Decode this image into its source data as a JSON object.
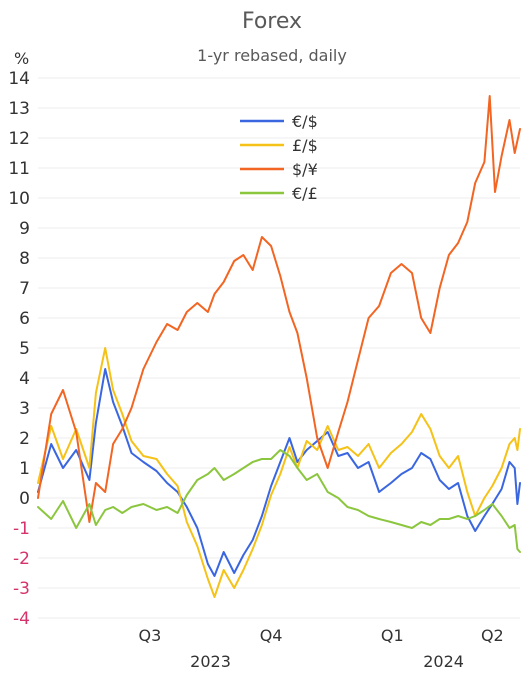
{
  "chart_data": {
    "type": "line",
    "title": "Forex",
    "subtitle": "1-yr rebased, daily",
    "ylabel": "%",
    "ylim": [
      -4,
      14
    ],
    "yticks": [
      -4,
      -3,
      -2,
      -1,
      0,
      1,
      2,
      3,
      4,
      5,
      6,
      7,
      8,
      9,
      10,
      11,
      12,
      13,
      14
    ],
    "xlim": [
      "2023-05-22",
      "2024-05-22"
    ],
    "quarter_ticks": [
      {
        "label": "Q3",
        "date": "2023-08-15"
      },
      {
        "label": "Q4",
        "date": "2023-11-15"
      },
      {
        "label": "Q1",
        "date": "2024-02-15"
      },
      {
        "label": "Q2",
        "date": "2024-05-01"
      }
    ],
    "year_labels": [
      {
        "label": "2023",
        "date": "2023-09-30"
      },
      {
        "label": "2024",
        "date": "2024-03-25"
      }
    ],
    "grid": true,
    "legend_position": "top-center",
    "series": [
      {
        "name": "€/$",
        "color": "#3a66e0",
        "points": [
          [
            "2023-05-22",
            0.2
          ],
          [
            "2023-06-01",
            1.8
          ],
          [
            "2023-06-10",
            1.0
          ],
          [
            "2023-06-20",
            1.6
          ],
          [
            "2023-06-30",
            0.6
          ],
          [
            "2023-07-05",
            2.5
          ],
          [
            "2023-07-12",
            4.3
          ],
          [
            "2023-07-18",
            3.2
          ],
          [
            "2023-07-25",
            2.4
          ],
          [
            "2023-08-01",
            1.5
          ],
          [
            "2023-08-10",
            1.2
          ],
          [
            "2023-08-20",
            0.9
          ],
          [
            "2023-08-28",
            0.5
          ],
          [
            "2023-09-05",
            0.2
          ],
          [
            "2023-09-12",
            -0.3
          ],
          [
            "2023-09-20",
            -1.0
          ],
          [
            "2023-09-28",
            -2.2
          ],
          [
            "2023-10-03",
            -2.6
          ],
          [
            "2023-10-10",
            -1.8
          ],
          [
            "2023-10-18",
            -2.5
          ],
          [
            "2023-10-25",
            -1.9
          ],
          [
            "2023-11-01",
            -1.4
          ],
          [
            "2023-11-08",
            -0.6
          ],
          [
            "2023-11-15",
            0.4
          ],
          [
            "2023-11-22",
            1.2
          ],
          [
            "2023-11-29",
            2.0
          ],
          [
            "2023-12-05",
            1.2
          ],
          [
            "2023-12-12",
            1.6
          ],
          [
            "2023-12-20",
            1.9
          ],
          [
            "2023-12-28",
            2.2
          ],
          [
            "2024-01-05",
            1.4
          ],
          [
            "2024-01-12",
            1.5
          ],
          [
            "2024-01-20",
            1.0
          ],
          [
            "2024-01-28",
            1.2
          ],
          [
            "2024-02-05",
            0.2
          ],
          [
            "2024-02-14",
            0.5
          ],
          [
            "2024-02-22",
            0.8
          ],
          [
            "2024-03-01",
            1.0
          ],
          [
            "2024-03-08",
            1.5
          ],
          [
            "2024-03-15",
            1.3
          ],
          [
            "2024-03-22",
            0.6
          ],
          [
            "2024-03-29",
            0.3
          ],
          [
            "2024-04-05",
            0.5
          ],
          [
            "2024-04-12",
            -0.6
          ],
          [
            "2024-04-18",
            -1.1
          ],
          [
            "2024-04-25",
            -0.6
          ],
          [
            "2024-05-01",
            -0.2
          ],
          [
            "2024-05-08",
            0.3
          ],
          [
            "2024-05-14",
            1.2
          ],
          [
            "2024-05-18",
            1.0
          ],
          [
            "2024-05-20",
            -0.2
          ],
          [
            "2024-05-22",
            0.5
          ]
        ]
      },
      {
        "name": "£/$",
        "color": "#f5c218",
        "points": [
          [
            "2023-05-22",
            0.5
          ],
          [
            "2023-06-01",
            2.4
          ],
          [
            "2023-06-10",
            1.3
          ],
          [
            "2023-06-20",
            2.3
          ],
          [
            "2023-06-30",
            1.0
          ],
          [
            "2023-07-05",
            3.5
          ],
          [
            "2023-07-12",
            5.0
          ],
          [
            "2023-07-18",
            3.6
          ],
          [
            "2023-07-25",
            2.8
          ],
          [
            "2023-08-01",
            1.9
          ],
          [
            "2023-08-10",
            1.4
          ],
          [
            "2023-08-20",
            1.3
          ],
          [
            "2023-08-28",
            0.8
          ],
          [
            "2023-09-05",
            0.4
          ],
          [
            "2023-09-12",
            -0.8
          ],
          [
            "2023-09-20",
            -1.6
          ],
          [
            "2023-09-28",
            -2.7
          ],
          [
            "2023-10-03",
            -3.3
          ],
          [
            "2023-10-10",
            -2.4
          ],
          [
            "2023-10-18",
            -3.0
          ],
          [
            "2023-10-25",
            -2.4
          ],
          [
            "2023-11-01",
            -1.7
          ],
          [
            "2023-11-08",
            -0.9
          ],
          [
            "2023-11-15",
            0.1
          ],
          [
            "2023-11-22",
            0.8
          ],
          [
            "2023-11-29",
            1.7
          ],
          [
            "2023-12-05",
            1.0
          ],
          [
            "2023-12-12",
            1.9
          ],
          [
            "2023-12-20",
            1.6
          ],
          [
            "2023-12-28",
            2.4
          ],
          [
            "2024-01-05",
            1.6
          ],
          [
            "2024-01-12",
            1.7
          ],
          [
            "2024-01-20",
            1.4
          ],
          [
            "2024-01-28",
            1.8
          ],
          [
            "2024-02-05",
            1.0
          ],
          [
            "2024-02-14",
            1.5
          ],
          [
            "2024-02-22",
            1.8
          ],
          [
            "2024-03-01",
            2.2
          ],
          [
            "2024-03-08",
            2.8
          ],
          [
            "2024-03-15",
            2.3
          ],
          [
            "2024-03-22",
            1.4
          ],
          [
            "2024-03-29",
            1.0
          ],
          [
            "2024-04-05",
            1.4
          ],
          [
            "2024-04-12",
            0.2
          ],
          [
            "2024-04-18",
            -0.6
          ],
          [
            "2024-04-25",
            0.0
          ],
          [
            "2024-05-01",
            0.4
          ],
          [
            "2024-05-08",
            1.0
          ],
          [
            "2024-05-14",
            1.8
          ],
          [
            "2024-05-18",
            2.0
          ],
          [
            "2024-05-20",
            1.6
          ],
          [
            "2024-05-22",
            2.3
          ]
        ]
      },
      {
        "name": "$/¥",
        "color": "#f26522",
        "points": [
          [
            "2023-05-22",
            0.0
          ],
          [
            "2023-06-01",
            2.8
          ],
          [
            "2023-06-10",
            3.6
          ],
          [
            "2023-06-20",
            2.2
          ],
          [
            "2023-06-30",
            -0.8
          ],
          [
            "2023-07-05",
            0.5
          ],
          [
            "2023-07-12",
            0.2
          ],
          [
            "2023-07-18",
            1.8
          ],
          [
            "2023-07-25",
            2.3
          ],
          [
            "2023-08-01",
            3.0
          ],
          [
            "2023-08-10",
            4.3
          ],
          [
            "2023-08-20",
            5.2
          ],
          [
            "2023-08-28",
            5.8
          ],
          [
            "2023-09-05",
            5.6
          ],
          [
            "2023-09-12",
            6.2
          ],
          [
            "2023-09-20",
            6.5
          ],
          [
            "2023-09-28",
            6.2
          ],
          [
            "2023-10-03",
            6.8
          ],
          [
            "2023-10-10",
            7.2
          ],
          [
            "2023-10-18",
            7.9
          ],
          [
            "2023-10-25",
            8.1
          ],
          [
            "2023-11-01",
            7.6
          ],
          [
            "2023-11-08",
            8.7
          ],
          [
            "2023-11-15",
            8.4
          ],
          [
            "2023-11-22",
            7.4
          ],
          [
            "2023-11-29",
            6.2
          ],
          [
            "2023-12-05",
            5.5
          ],
          [
            "2023-12-12",
            4.0
          ],
          [
            "2023-12-20",
            2.0
          ],
          [
            "2023-12-28",
            1.0
          ],
          [
            "2024-01-05",
            2.2
          ],
          [
            "2024-01-12",
            3.2
          ],
          [
            "2024-01-20",
            4.6
          ],
          [
            "2024-01-28",
            6.0
          ],
          [
            "2024-02-05",
            6.4
          ],
          [
            "2024-02-14",
            7.5
          ],
          [
            "2024-02-22",
            7.8
          ],
          [
            "2024-03-01",
            7.5
          ],
          [
            "2024-03-08",
            6.0
          ],
          [
            "2024-03-15",
            5.5
          ],
          [
            "2024-03-22",
            7.0
          ],
          [
            "2024-03-29",
            8.1
          ],
          [
            "2024-04-05",
            8.5
          ],
          [
            "2024-04-12",
            9.2
          ],
          [
            "2024-04-18",
            10.5
          ],
          [
            "2024-04-25",
            11.2
          ],
          [
            "2024-04-29",
            13.4
          ],
          [
            "2024-05-03",
            10.2
          ],
          [
            "2024-05-08",
            11.4
          ],
          [
            "2024-05-14",
            12.6
          ],
          [
            "2024-05-18",
            11.5
          ],
          [
            "2024-05-22",
            12.3
          ]
        ]
      },
      {
        "name": "€/£",
        "color": "#8cc63f",
        "points": [
          [
            "2023-05-22",
            -0.3
          ],
          [
            "2023-06-01",
            -0.7
          ],
          [
            "2023-06-10",
            -0.1
          ],
          [
            "2023-06-20",
            -1.0
          ],
          [
            "2023-06-30",
            -0.2
          ],
          [
            "2023-07-05",
            -0.9
          ],
          [
            "2023-07-12",
            -0.4
          ],
          [
            "2023-07-18",
            -0.3
          ],
          [
            "2023-07-25",
            -0.5
          ],
          [
            "2023-08-01",
            -0.3
          ],
          [
            "2023-08-10",
            -0.2
          ],
          [
            "2023-08-20",
            -0.4
          ],
          [
            "2023-08-28",
            -0.3
          ],
          [
            "2023-09-05",
            -0.5
          ],
          [
            "2023-09-12",
            0.1
          ],
          [
            "2023-09-20",
            0.6
          ],
          [
            "2023-09-28",
            0.8
          ],
          [
            "2023-10-03",
            1.0
          ],
          [
            "2023-10-10",
            0.6
          ],
          [
            "2023-10-18",
            0.8
          ],
          [
            "2023-10-25",
            1.0
          ],
          [
            "2023-11-01",
            1.2
          ],
          [
            "2023-11-08",
            1.3
          ],
          [
            "2023-11-15",
            1.3
          ],
          [
            "2023-11-22",
            1.6
          ],
          [
            "2023-11-29",
            1.4
          ],
          [
            "2023-12-05",
            1.0
          ],
          [
            "2023-12-12",
            0.6
          ],
          [
            "2023-12-20",
            0.8
          ],
          [
            "2023-12-28",
            0.2
          ],
          [
            "2024-01-05",
            0.0
          ],
          [
            "2024-01-12",
            -0.3
          ],
          [
            "2024-01-20",
            -0.4
          ],
          [
            "2024-01-28",
            -0.6
          ],
          [
            "2024-02-05",
            -0.7
          ],
          [
            "2024-02-14",
            -0.8
          ],
          [
            "2024-02-22",
            -0.9
          ],
          [
            "2024-03-01",
            -1.0
          ],
          [
            "2024-03-08",
            -0.8
          ],
          [
            "2024-03-15",
            -0.9
          ],
          [
            "2024-03-22",
            -0.7
          ],
          [
            "2024-03-29",
            -0.7
          ],
          [
            "2024-04-05",
            -0.6
          ],
          [
            "2024-04-12",
            -0.7
          ],
          [
            "2024-04-18",
            -0.6
          ],
          [
            "2024-04-25",
            -0.4
          ],
          [
            "2024-05-01",
            -0.2
          ],
          [
            "2024-05-08",
            -0.6
          ],
          [
            "2024-05-14",
            -1.0
          ],
          [
            "2024-05-18",
            -0.9
          ],
          [
            "2024-05-20",
            -1.7
          ],
          [
            "2024-05-22",
            -1.8
          ]
        ]
      }
    ]
  }
}
